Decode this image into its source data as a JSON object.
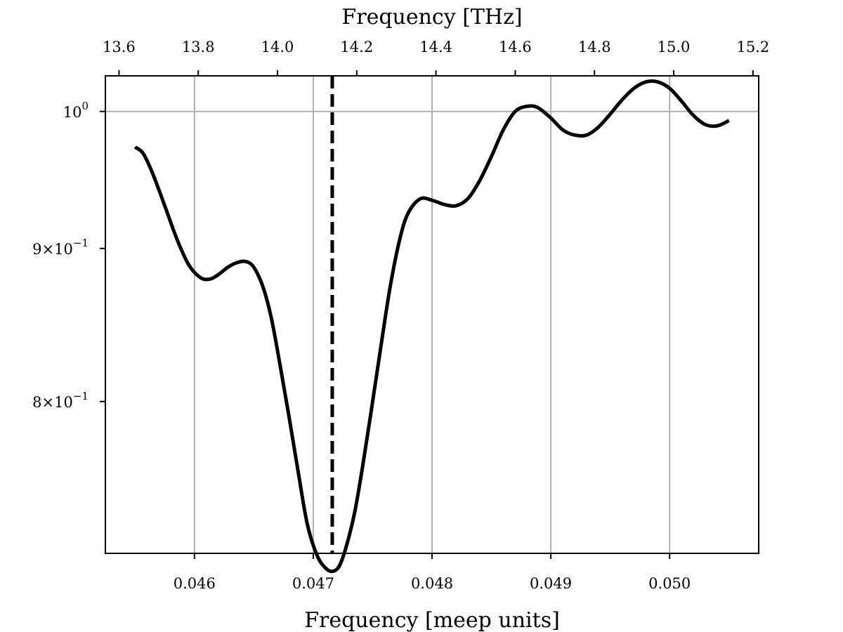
{
  "chart_data": {
    "type": "line",
    "xlabel": "Frequency [meep units]",
    "x2label": "Frequency [THz]",
    "xlim": [
      0.04525,
      0.05075
    ],
    "ylim": [
      0.7118,
      1.0278
    ],
    "yscale": "log",
    "grid": true,
    "x_ticks": [
      {
        "value": 0.046,
        "label": "0.046"
      },
      {
        "value": 0.047,
        "label": "0.047"
      },
      {
        "value": 0.048,
        "label": "0.048"
      },
      {
        "value": 0.049,
        "label": "0.049"
      },
      {
        "value": 0.05,
        "label": "0.050"
      }
    ],
    "x2_ticks": [
      {
        "value": 13.6,
        "label": "13.6"
      },
      {
        "value": 13.8,
        "label": "13.8"
      },
      {
        "value": 14.0,
        "label": "14.0"
      },
      {
        "value": 14.2,
        "label": "14.2"
      },
      {
        "value": 14.4,
        "label": "14.4"
      },
      {
        "value": 14.6,
        "label": "14.6"
      },
      {
        "value": 14.8,
        "label": "14.8"
      },
      {
        "value": 15.0,
        "label": "15.0"
      },
      {
        "value": 15.2,
        "label": "15.2"
      }
    ],
    "y_ticks": [
      {
        "value": 1.0,
        "base": "10",
        "exp": "0",
        "coef": ""
      },
      {
        "value": 0.9,
        "base": "10",
        "exp": "−1",
        "coef": "9×"
      },
      {
        "value": 0.8,
        "base": "10",
        "exp": "−1",
        "coef": "8×"
      }
    ],
    "vline": {
      "x": 0.04716,
      "style": "dashed",
      "color": "#000000"
    },
    "series": [
      {
        "color": "#000000",
        "x": [
          0.0455,
          0.04557,
          0.04565,
          0.04575,
          0.04585,
          0.04595,
          0.04605,
          0.04613,
          0.0462,
          0.04628,
          0.04635,
          0.04643,
          0.0465,
          0.04658,
          0.04665,
          0.04672,
          0.0468,
          0.04688,
          0.04695,
          0.04703,
          0.0471,
          0.04716,
          0.04722,
          0.04728,
          0.04735,
          0.04742,
          0.0475,
          0.04758,
          0.04765,
          0.04773,
          0.0478,
          0.0479,
          0.048,
          0.0481,
          0.0482,
          0.0483,
          0.0484,
          0.0485,
          0.0486,
          0.0487,
          0.0488,
          0.04889,
          0.049,
          0.0491,
          0.0492,
          0.0493,
          0.0494,
          0.0495,
          0.0496,
          0.0497,
          0.0498,
          0.0499,
          0.05,
          0.0501,
          0.0502,
          0.0503,
          0.0504,
          0.0505
        ],
        "y": [
          0.973,
          0.968,
          0.953,
          0.93,
          0.907,
          0.889,
          0.88,
          0.879,
          0.882,
          0.887,
          0.89,
          0.891,
          0.887,
          0.873,
          0.852,
          0.823,
          0.789,
          0.755,
          0.728,
          0.711,
          0.704,
          0.702,
          0.705,
          0.716,
          0.735,
          0.763,
          0.8,
          0.84,
          0.875,
          0.907,
          0.925,
          0.935,
          0.934,
          0.931,
          0.93,
          0.935,
          0.948,
          0.966,
          0.986,
          1.0,
          1.004,
          1.003,
          0.995,
          0.986,
          0.982,
          0.982,
          0.988,
          0.998,
          1.009,
          1.018,
          1.023,
          1.023,
          1.018,
          1.008,
          0.997,
          0.99,
          0.989,
          0.993
        ]
      }
    ]
  }
}
